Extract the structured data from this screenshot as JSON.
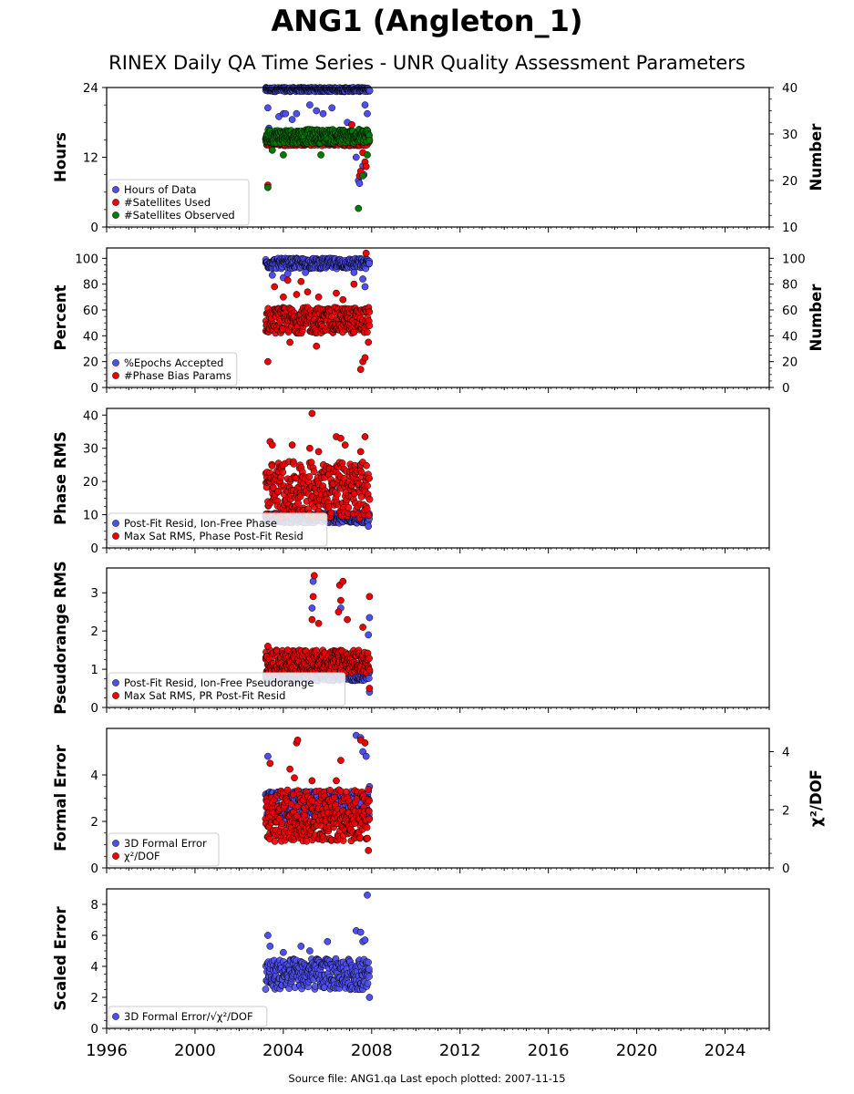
{
  "title": "ANG1 (Angleton_1)",
  "subtitle": "RINEX Daily QA Time Series - UNR Quality Assessment Parameters",
  "footer": "Source file: ANG1.qa Last epoch plotted: 2007-11-15",
  "colors": {
    "blue": "#4f4ff0",
    "red": "#ee0000",
    "green": "#007a00"
  },
  "chart_data": [
    {
      "type": "scatter",
      "xlabel": "",
      "ylabel": "Hours",
      "y2label": "Number",
      "xlim": [
        1996,
        2026
      ],
      "ylim": [
        0,
        24
      ],
      "y2lim": [
        10,
        40
      ],
      "yticks": [
        0,
        12,
        24
      ],
      "y2ticks": [
        10,
        20,
        30,
        40
      ],
      "legend_loc": "lower left",
      "series": [
        {
          "name": "Hours of Data",
          "axis": "left",
          "color": "blue",
          "data_range": [
            2003.2,
            2007.9
          ],
          "typical": [
            23.3,
            24.0
          ],
          "clip_max": 24,
          "outliers": [
            [
              2003.3,
              20.5
            ],
            [
              2003.35,
              17.0
            ],
            [
              2003.8,
              19.0
            ],
            [
              2004.0,
              19.5
            ],
            [
              2004.1,
              19.5
            ],
            [
              2004.4,
              18.5
            ],
            [
              2004.6,
              19.5
            ],
            [
              2004.9,
              15.5
            ],
            [
              2005.2,
              21.0
            ],
            [
              2005.5,
              20.0
            ],
            [
              2005.8,
              19.5
            ],
            [
              2006.2,
              20.5
            ],
            [
              2006.9,
              18.0
            ],
            [
              2007.3,
              12.0
            ],
            [
              2007.4,
              8.0
            ],
            [
              2007.45,
              7.5
            ],
            [
              2007.6,
              10.5
            ],
            [
              2007.65,
              9.0
            ],
            [
              2007.7,
              21.0
            ],
            [
              2007.8,
              19.5
            ]
          ]
        },
        {
          "name": "#Satellites Used",
          "axis": "right",
          "color": "red",
          "data_range": [
            2003.2,
            2007.9
          ],
          "typical": [
            27.5,
            29.5
          ],
          "outliers": [
            [
              2003.3,
              19.0
            ],
            [
              2006.3,
              30.5
            ],
            [
              2006.6,
              28.0
            ],
            [
              2007.1,
              32.0
            ],
            [
              2007.45,
              21.0
            ],
            [
              2007.5,
              22.0
            ],
            [
              2007.6,
              26.0
            ],
            [
              2007.7,
              24.0
            ],
            [
              2007.75,
              23.0
            ]
          ]
        },
        {
          "name": "#Satellites Observed",
          "axis": "right",
          "color": "green",
          "data_range": [
            2003.2,
            2007.9
          ],
          "typical": [
            28.0,
            31.0
          ],
          "outliers": [
            [
              2003.3,
              18.5
            ],
            [
              2003.5,
              26.5
            ],
            [
              2004.0,
              25.5
            ],
            [
              2005.7,
              25.5
            ],
            [
              2007.4,
              14.0
            ],
            [
              2007.6,
              21.0
            ],
            [
              2007.8,
              25.5
            ]
          ]
        }
      ]
    },
    {
      "type": "scatter",
      "xlabel": "",
      "ylabel": "Percent",
      "y2label": "Number",
      "xlim": [
        1996,
        2026
      ],
      "ylim": [
        0,
        108
      ],
      "y2lim": [
        0,
        108
      ],
      "yticks": [
        0,
        20,
        40,
        60,
        80,
        100
      ],
      "y2ticks": [
        0,
        20,
        40,
        60,
        80,
        100
      ],
      "legend_loc": "lower left",
      "series": [
        {
          "name": "%Epochs Accepted",
          "axis": "left",
          "color": "blue",
          "data_range": [
            2003.2,
            2007.9
          ],
          "typical": [
            92,
            100
          ],
          "outliers": [
            [
              2003.5,
              87
            ],
            [
              2004.0,
              85
            ],
            [
              2004.2,
              88
            ],
            [
              2005.0,
              89
            ],
            [
              2007.2,
              89
            ],
            [
              2007.6,
              84
            ],
            [
              2007.7,
              78
            ]
          ]
        },
        {
          "name": "#Phase Bias Params",
          "axis": "right",
          "color": "red",
          "data_range": [
            2003.2,
            2007.9
          ],
          "typical": [
            42,
            62
          ],
          "outliers": [
            [
              2003.3,
              20
            ],
            [
              2003.6,
              78
            ],
            [
              2004.0,
              70
            ],
            [
              2004.2,
              83
            ],
            [
              2004.3,
              35
            ],
            [
              2004.6,
              72
            ],
            [
              2004.8,
              82
            ],
            [
              2005.1,
              74
            ],
            [
              2005.5,
              32
            ],
            [
              2005.6,
              70
            ],
            [
              2006.4,
              73
            ],
            [
              2006.7,
              68
            ],
            [
              2007.2,
              80
            ],
            [
              2007.5,
              14
            ],
            [
              2007.6,
              20
            ],
            [
              2007.7,
              23
            ],
            [
              2007.75,
              104
            ],
            [
              2007.85,
              35
            ]
          ]
        }
      ]
    },
    {
      "type": "scatter",
      "xlabel": "",
      "ylabel": "Phase RMS",
      "xlim": [
        1996,
        2026
      ],
      "ylim": [
        0,
        42
      ],
      "yticks": [
        0,
        10,
        20,
        30,
        40
      ],
      "legend_loc": "lower left",
      "series": [
        {
          "name": "Post-Fit Resid, Ion-Free Phase",
          "axis": "left",
          "color": "blue",
          "data_range": [
            2003.2,
            2007.9
          ],
          "typical": [
            7.5,
            10.5
          ],
          "outliers": [
            [
              2007.85,
              6.5
            ]
          ]
        },
        {
          "name": "Max Sat RMS, Phase Post-Fit Resid",
          "axis": "left",
          "color": "red",
          "data_range": [
            2003.2,
            2007.9
          ],
          "typical": [
            9,
            26
          ],
          "outliers": [
            [
              2003.4,
              32
            ],
            [
              2003.5,
              31
            ],
            [
              2004.4,
              31
            ],
            [
              2005.2,
              30
            ],
            [
              2005.3,
              40.5
            ],
            [
              2005.6,
              29
            ],
            [
              2006.4,
              33.5
            ],
            [
              2006.6,
              33
            ],
            [
              2006.8,
              31
            ],
            [
              2007.5,
              29
            ],
            [
              2007.7,
              33.5
            ]
          ]
        }
      ]
    },
    {
      "type": "scatter",
      "xlabel": "",
      "ylabel": "Pseudorange RMS",
      "xlim": [
        1996,
        2026
      ],
      "ylim": [
        0,
        3.65
      ],
      "yticks": [
        0,
        1,
        2,
        3
      ],
      "legend_loc": "lower left",
      "series": [
        {
          "name": "Post-Fit Resid, Ion-Free Pseudorange",
          "axis": "left",
          "color": "blue",
          "data_range": [
            2003.2,
            2007.9
          ],
          "typical": [
            0.7,
            0.95
          ],
          "outliers": [
            [
              2005.3,
              2.6
            ],
            [
              2005.35,
              3.3
            ],
            [
              2006.6,
              2.6
            ],
            [
              2007.85,
              1.9
            ],
            [
              2007.9,
              2.35
            ],
            [
              2007.9,
              0.4
            ]
          ]
        },
        {
          "name": "Max Sat RMS, PR Post-Fit Resid",
          "axis": "left",
          "color": "red",
          "data_range": [
            2003.2,
            2007.9
          ],
          "typical": [
            0.9,
            1.5
          ],
          "outliers": [
            [
              2003.3,
              1.6
            ],
            [
              2004.2,
              1.5
            ],
            [
              2005.3,
              2.3
            ],
            [
              2005.35,
              2.9
            ],
            [
              2005.4,
              3.45
            ],
            [
              2005.6,
              2.2
            ],
            [
              2006.5,
              2.5
            ],
            [
              2006.55,
              3.2
            ],
            [
              2006.6,
              2.8
            ],
            [
              2006.7,
              3.3
            ],
            [
              2006.9,
              2.3
            ],
            [
              2007.6,
              2.1
            ],
            [
              2007.9,
              2.9
            ],
            [
              2007.9,
              0.5
            ]
          ]
        }
      ]
    },
    {
      "type": "scatter",
      "xlabel": "",
      "ylabel": "Formal Error",
      "y2label": "χ²/DOF",
      "xlim": [
        1996,
        2026
      ],
      "ylim": [
        0,
        6.0
      ],
      "y2lim": [
        0,
        4.8
      ],
      "yticks": [
        0,
        2,
        4
      ],
      "y2ticks": [
        0,
        2,
        4
      ],
      "legend_loc": "lower left",
      "series": [
        {
          "name": "3D Formal Error",
          "axis": "left",
          "color": "blue",
          "data_range": [
            2003.2,
            2007.9
          ],
          "typical": [
            2.0,
            3.3
          ],
          "outliers": [
            [
              2003.3,
              4.8
            ],
            [
              2007.3,
              5.7
            ],
            [
              2007.5,
              5.6
            ],
            [
              2007.6,
              5.0
            ],
            [
              2007.75,
              4.8
            ],
            [
              2007.9,
              3.5
            ]
          ]
        },
        {
          "name": "χ²/DOF",
          "axis": "right",
          "color": "red",
          "data_range": [
            2003.2,
            2007.9
          ],
          "typical": [
            0.9,
            2.7
          ],
          "outliers": [
            [
              2003.4,
              3.6
            ],
            [
              2004.3,
              3.4
            ],
            [
              2004.5,
              3.1
            ],
            [
              2004.6,
              4.3
            ],
            [
              2004.65,
              4.4
            ],
            [
              2005.3,
              3.0
            ],
            [
              2006.4,
              3.0
            ],
            [
              2006.6,
              3.7
            ],
            [
              2007.5,
              4.4
            ],
            [
              2007.7,
              4.3
            ],
            [
              2007.85,
              0.6
            ]
          ]
        }
      ]
    },
    {
      "type": "scatter",
      "xlabel": "",
      "ylabel": "Scaled Error",
      "xlim": [
        1996,
        2026
      ],
      "ylim": [
        0,
        9.0
      ],
      "yticks": [
        0,
        2,
        4,
        6,
        8
      ],
      "xticks": [
        1996,
        2000,
        2004,
        2008,
        2012,
        2016,
        2020,
        2024
      ],
      "legend_loc": "lower left",
      "series": [
        {
          "name": "3D Formal Error/√χ²/DOF",
          "axis": "left",
          "color": "blue",
          "data_range": [
            2003.2,
            2007.9
          ],
          "typical": [
            2.5,
            4.5
          ],
          "outliers": [
            [
              2003.3,
              6.0
            ],
            [
              2003.4,
              5.3
            ],
            [
              2004.0,
              4.9
            ],
            [
              2004.8,
              5.3
            ],
            [
              2005.2,
              5.0
            ],
            [
              2006.0,
              5.6
            ],
            [
              2007.3,
              6.3
            ],
            [
              2007.5,
              6.2
            ],
            [
              2007.6,
              5.6
            ],
            [
              2007.7,
              5.7
            ],
            [
              2007.8,
              8.6
            ],
            [
              2007.9,
              2.0
            ]
          ]
        }
      ]
    }
  ]
}
